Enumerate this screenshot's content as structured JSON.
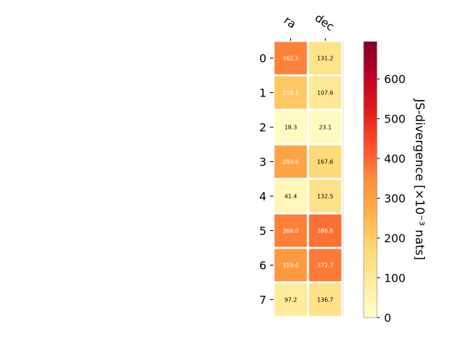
{
  "chart_data": {
    "type": "heatmap",
    "columns": [
      "ra",
      "dec"
    ],
    "rows": [
      "0",
      "1",
      "2",
      "3",
      "4",
      "5",
      "6",
      "7"
    ],
    "values": [
      [
        362.5,
        131.2
      ],
      [
        210.1,
        107.6
      ],
      [
        18.3,
        23.1
      ],
      [
        293.6,
        167.6
      ],
      [
        41.4,
        132.5
      ],
      [
        366.0,
        386.6
      ],
      [
        319.0,
        372.7
      ],
      [
        97.2,
        136.7
      ]
    ],
    "cell_labels": [
      [
        "362.5",
        "131.2"
      ],
      [
        "210.1",
        "107.6"
      ],
      [
        "18.3",
        "23.1"
      ],
      [
        "293.6",
        "167.6"
      ],
      [
        "41.4",
        "132.5"
      ],
      [
        "366.0",
        "386.6"
      ],
      [
        "319.0",
        "372.7"
      ],
      [
        "97.2",
        "136.7"
      ]
    ],
    "colorbar": {
      "label": "JS-divergence [×10⁻³ nats]",
      "range": [
        0,
        694
      ],
      "ticks": [
        0,
        100,
        200,
        300,
        400,
        500,
        600
      ],
      "colormap": "YlOrRd"
    },
    "grid": false
  }
}
